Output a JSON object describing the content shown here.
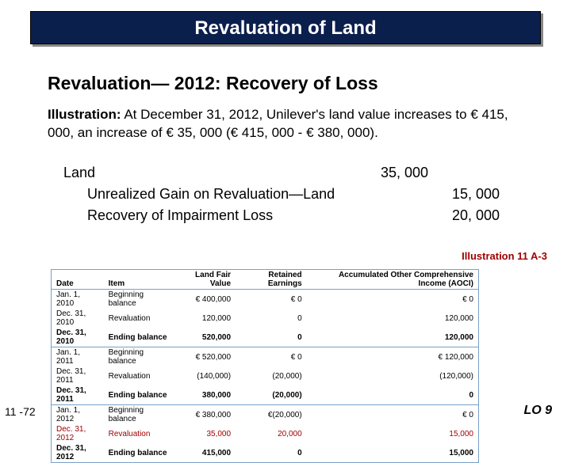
{
  "title": "Revaluation of Land",
  "heading": "Revaluation— 2012: Recovery of Loss",
  "illustration_label": "Illustration:",
  "illustration_text": " At December 31, 2012, Unilever's land value increases to € 415, 000, an increase of € 35, 000 (€ 415, 000 - € 380, 000).",
  "journal": {
    "lines": [
      {
        "account": "Land",
        "debit": "35, 000",
        "credit": "",
        "indent": false
      },
      {
        "account": "Unrealized Gain on Revaluation—Land",
        "debit": "",
        "credit": "15, 000",
        "indent": true
      },
      {
        "account": "Recovery of Impairment Loss",
        "debit": "",
        "credit": "20, 000",
        "indent": true
      }
    ]
  },
  "illus_ref": "Illustration 11 A-3",
  "table": {
    "headers": [
      "Date",
      "Item",
      "Land Fair Value",
      "Retained Earnings",
      "Accumulated Other Comprehensive Income (AOCI)"
    ],
    "rows": [
      {
        "cells": [
          "Jan. 1, 2010",
          "Beginning balance",
          "€ 400,000",
          "€            0",
          "€            0"
        ],
        "bold": false,
        "red": false
      },
      {
        "cells": [
          "Dec. 31, 2010",
          "Revaluation",
          "120,000",
          "0",
          "120,000"
        ],
        "bold": false,
        "red": false
      },
      {
        "cells": [
          "Dec. 31, 2010",
          "Ending balance",
          "520,000",
          "0",
          "120,000"
        ],
        "bold": true,
        "red": false,
        "sep": true
      },
      {
        "cells": [
          "Jan. 1, 2011",
          "Beginning balance",
          "€ 520,000",
          "€            0",
          "€ 120,000"
        ],
        "bold": false,
        "red": false
      },
      {
        "cells": [
          "Dec. 31, 2011",
          "Revaluation",
          "(140,000)",
          "(20,000)",
          "(120,000)"
        ],
        "bold": false,
        "red": false
      },
      {
        "cells": [
          "Dec. 31, 2011",
          "Ending balance",
          "380,000",
          "(20,000)",
          "0"
        ],
        "bold": true,
        "red": false,
        "sep": true
      },
      {
        "cells": [
          "Jan. 1, 2012",
          "Beginning balance",
          "€ 380,000",
          "€(20,000)",
          "€            0"
        ],
        "bold": false,
        "red": false
      },
      {
        "cells": [
          "Dec. 31, 2012",
          "Revaluation",
          "35,000",
          "20,000",
          "15,000"
        ],
        "bold": false,
        "red": true
      },
      {
        "cells": [
          "Dec. 31, 2012",
          "Ending balance",
          "415,000",
          "0",
          "15,000"
        ],
        "bold": true,
        "red": false
      }
    ]
  },
  "page_number": "11 -72",
  "learning_objective": "LO 9"
}
